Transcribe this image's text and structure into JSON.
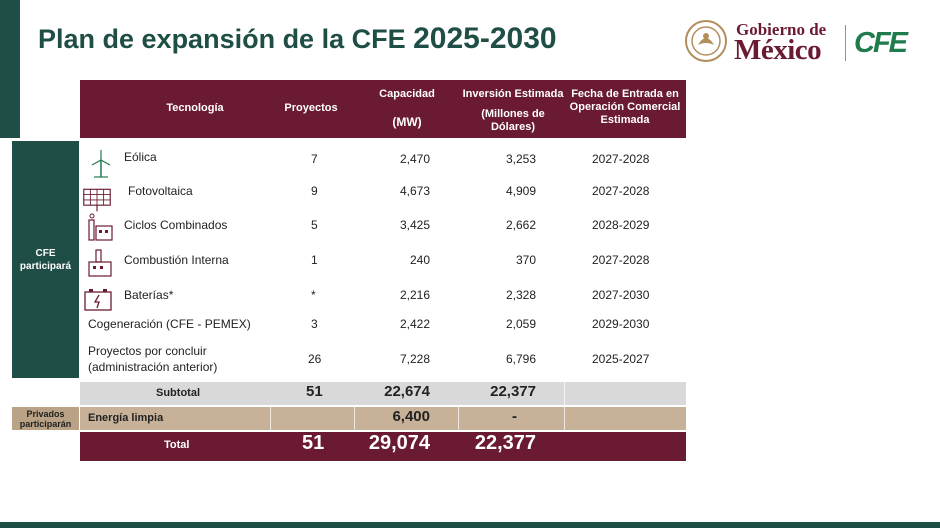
{
  "title": {
    "main": "Plan de expansión de la CFE",
    "years": "2025-2030"
  },
  "logo": {
    "gobierno_de": "Gobierno de",
    "mexico": "México",
    "cfe": "CFE"
  },
  "table": {
    "headers": {
      "tecnologia": "Tecnología",
      "proyectos": "Proyectos",
      "capacidad": "Capacidad",
      "capacidad_unit": "(MW)",
      "inversion": "Inversión Estimada",
      "inversion_unit": "(Millones de Dólares)",
      "fecha": "Fecha de Entrada en Operación Comercial Estimada"
    },
    "group_cfe": "CFE participará",
    "group_privados": "Privados participarán",
    "rows": [
      {
        "tecnologia": "Eólica",
        "proyectos": "7",
        "capacidad": "2,470",
        "inversion": "3,253",
        "fecha": "2027-2028",
        "icon": "wind-turbine-icon"
      },
      {
        "tecnologia": "Fotovoltaica",
        "proyectos": "9",
        "capacidad": "4,673",
        "inversion": "4,909",
        "fecha": "2027-2028",
        "icon": "solar-panel-icon"
      },
      {
        "tecnologia": "Ciclos Combinados",
        "proyectos": "5",
        "capacidad": "3,425",
        "inversion": "2,662",
        "fecha": "2028-2029",
        "icon": "power-plant-icon"
      },
      {
        "tecnologia": "Combustión Interna",
        "proyectos": "1",
        "capacidad": "240",
        "inversion": "370",
        "fecha": "2027-2028",
        "icon": "engine-plant-icon"
      },
      {
        "tecnologia": "Baterías*",
        "proyectos": "*",
        "capacidad": "2,216",
        "inversion": "2,328",
        "fecha": "2027-2030",
        "icon": "battery-icon"
      },
      {
        "tecnologia": "Cogeneración (CFE - PEMEX)",
        "proyectos": "3",
        "capacidad": "2,422",
        "inversion": "2,059",
        "fecha": "2029-2030"
      },
      {
        "tecnologia_line1": "Proyectos por concluir",
        "tecnologia_line2": "(administración anterior)",
        "proyectos": "26",
        "capacidad": "7,228",
        "inversion": "6,796",
        "fecha": "2025-2027"
      }
    ],
    "subtotal": {
      "label": "Subtotal",
      "proyectos": "51",
      "capacidad": "22,674",
      "inversion": "22,377"
    },
    "limpia": {
      "label": "Energía limpia",
      "capacidad": "6,400",
      "inversion": "-"
    },
    "total": {
      "label": "Total",
      "proyectos": "51",
      "capacidad": "29,074",
      "inversion": "22,377"
    }
  },
  "colors": {
    "guinda": "#6a1b31",
    "verde": "#1f4e46",
    "dorado": "#b9a285",
    "gris": "#d9d9d9"
  }
}
